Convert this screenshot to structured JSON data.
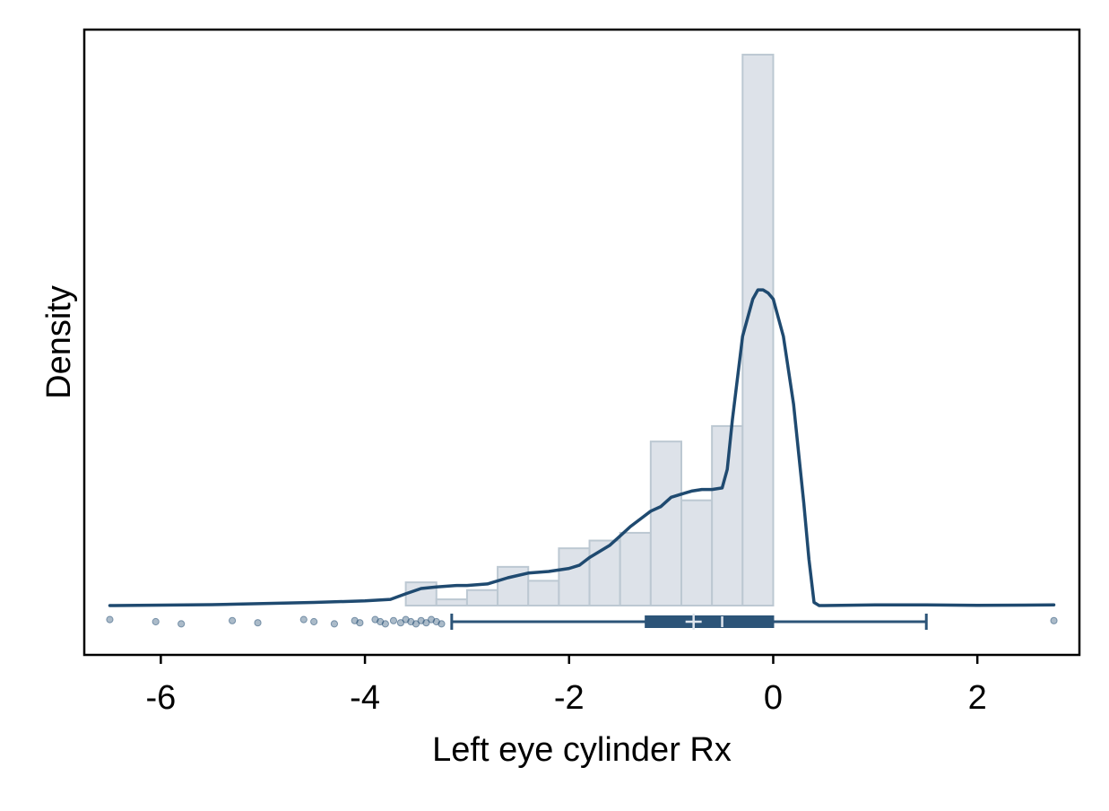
{
  "chart_data": {
    "type": "bar",
    "title": "",
    "xlabel": "Left eye cylinder Rx",
    "ylabel": "Density",
    "xlim": [
      -6.75,
      3.0
    ],
    "x_ticks": [
      -6,
      -4,
      -2,
      0,
      2
    ],
    "x_tick_labels": [
      "-6",
      "-4",
      "-2",
      "0",
      "2"
    ],
    "y_ticks_shown": false,
    "grid": false,
    "legend": "none",
    "colors": {
      "bar_fill": "#dde2e9",
      "bar_stroke": "#bcc8d2",
      "line": "#1f4a70",
      "box": "#2c5478",
      "box_marker": "#dfe6ee"
    },
    "histogram": {
      "bin_width": 0.3,
      "bins": [
        {
          "x0": -3.6,
          "x1": -3.3,
          "density": 0.075
        },
        {
          "x0": -3.3,
          "x1": -3.0,
          "density": 0.02
        },
        {
          "x0": -3.0,
          "x1": -2.7,
          "density": 0.05
        },
        {
          "x0": -2.7,
          "x1": -2.4,
          "density": 0.125
        },
        {
          "x0": -2.4,
          "x1": -2.1,
          "density": 0.08
        },
        {
          "x0": -2.1,
          "x1": -1.8,
          "density": 0.185
        },
        {
          "x0": -1.8,
          "x1": -1.5,
          "density": 0.21
        },
        {
          "x0": -1.5,
          "x1": -1.2,
          "density": 0.235
        },
        {
          "x0": -1.2,
          "x1": -0.9,
          "density": 0.53
        },
        {
          "x0": -0.9,
          "x1": -0.6,
          "density": 0.34
        },
        {
          "x0": -0.6,
          "x1": -0.3,
          "density": 0.58
        },
        {
          "x0": -0.3,
          "x1": 0.0,
          "density": 1.78
        }
      ]
    },
    "density_curve": {
      "x": [
        -6.5,
        -5.5,
        -4.5,
        -4.0,
        -3.75,
        -3.6,
        -3.45,
        -3.3,
        -3.1,
        -3.0,
        -2.8,
        -2.6,
        -2.4,
        -2.2,
        -2.0,
        -1.9,
        -1.8,
        -1.6,
        -1.5,
        -1.4,
        -1.3,
        -1.2,
        -1.1,
        -1.0,
        -0.9,
        -0.8,
        -0.7,
        -0.6,
        -0.5,
        -0.45,
        -0.4,
        -0.3,
        -0.2,
        -0.15,
        -0.1,
        -0.05,
        0.0,
        0.1,
        0.2,
        0.3,
        0.35,
        0.4,
        0.45,
        0.5,
        1.0,
        1.5,
        2.0,
        2.75
      ],
      "y": [
        0.0,
        0.003,
        0.01,
        0.015,
        0.02,
        0.038,
        0.055,
        0.06,
        0.065,
        0.065,
        0.07,
        0.09,
        0.105,
        0.11,
        0.12,
        0.13,
        0.155,
        0.195,
        0.225,
        0.255,
        0.28,
        0.305,
        0.32,
        0.35,
        0.36,
        0.37,
        0.375,
        0.375,
        0.38,
        0.44,
        0.6,
        0.87,
        0.99,
        1.02,
        1.02,
        1.01,
        0.99,
        0.87,
        0.65,
        0.33,
        0.15,
        0.01,
        0.0,
        0.0,
        0.002,
        0.002,
        0.001,
        0.002
      ]
    },
    "boxplot": {
      "whisker_low": -3.15,
      "q1": -1.25,
      "median": -0.5,
      "mean": -0.78,
      "q3": 0.0,
      "whisker_high": 1.5,
      "outliers": [
        -6.5,
        -6.05,
        -5.8,
        -5.3,
        -5.05,
        -4.6,
        -4.5,
        -4.3,
        -4.1,
        -4.05,
        -3.9,
        -3.85,
        -3.8,
        -3.72,
        -3.65,
        -3.6,
        -3.55,
        -3.5,
        -3.45,
        -3.4,
        -3.35,
        -3.3,
        -3.25,
        2.75
      ]
    }
  }
}
